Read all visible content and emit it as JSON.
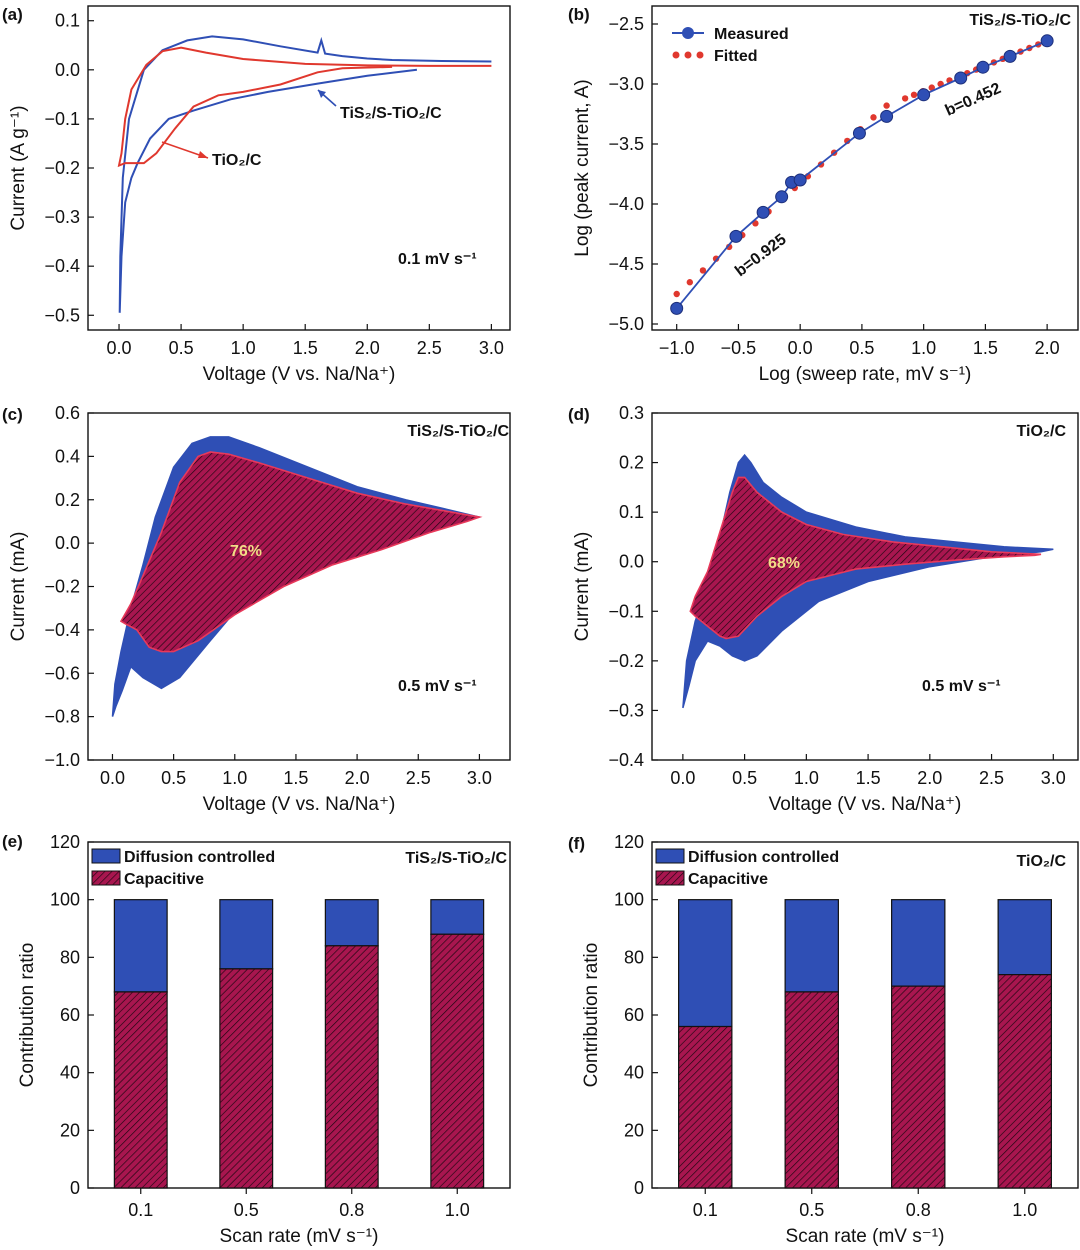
{
  "colors": {
    "blue": "#2f4fb5",
    "red": "#e0382e",
    "crimson": "#a8164f",
    "outline": "#e8395a",
    "pct": "#f2dc86"
  },
  "panels": [
    {
      "id": "a",
      "label": "(a)",
      "annotation": "0.1 mV s⁻¹",
      "curve_labels": [
        "TiS₂/S-TiO₂/C",
        "TiO₂/C"
      ],
      "chart_data": {
        "type": "line",
        "xlabel": "Voltage (V vs. Na/Na⁺)",
        "ylabel": "Current (A g⁻¹)",
        "xlim": [
          -0.25,
          3.15
        ],
        "ylim": [
          -0.53,
          0.13
        ],
        "xticks": [
          0.0,
          0.5,
          1.0,
          1.5,
          2.0,
          2.5,
          3.0
        ],
        "yticks": [
          0.1,
          0.0,
          -0.1,
          -0.2,
          -0.3,
          -0.4,
          -0.5
        ],
        "series": [
          {
            "name": "TiS₂/S-TiO₂/C",
            "color": "#2f4fb5",
            "x": [
              3.0,
              2.6,
              2.2,
              2.0,
              1.8,
              1.66,
              1.63,
              1.6,
              1.3,
              1.0,
              0.75,
              0.55,
              0.35,
              0.2,
              0.08,
              0.03,
              0.01,
              0.005,
              0.02,
              0.05,
              0.1,
              0.15,
              0.25,
              0.4,
              0.6,
              0.9,
              1.2,
              1.6,
              2.0,
              2.4
            ],
            "y": [
              0.017,
              0.018,
              0.02,
              0.023,
              0.028,
              0.033,
              0.06,
              0.035,
              0.048,
              0.062,
              0.068,
              0.06,
              0.04,
              0.0,
              -0.1,
              -0.22,
              -0.38,
              -0.495,
              -0.38,
              -0.27,
              -0.22,
              -0.19,
              -0.14,
              -0.1,
              -0.083,
              -0.06,
              -0.045,
              -0.028,
              -0.012,
              0.0
            ]
          },
          {
            "name": "TiO₂/C",
            "color": "#e0382e",
            "x": [
              3.0,
              2.5,
              2.0,
              1.5,
              1.0,
              0.7,
              0.5,
              0.35,
              0.22,
              0.1,
              0.05,
              0.02,
              0.0,
              0.05,
              0.12,
              0.2,
              0.3,
              0.45,
              0.6,
              0.8,
              1.0,
              1.3,
              1.6,
              1.8,
              2.2
            ],
            "y": [
              0.008,
              0.008,
              0.009,
              0.012,
              0.022,
              0.035,
              0.045,
              0.038,
              0.01,
              -0.04,
              -0.1,
              -0.17,
              -0.195,
              -0.19,
              -0.19,
              -0.19,
              -0.17,
              -0.12,
              -0.075,
              -0.052,
              -0.045,
              -0.03,
              -0.005,
              0.003,
              0.006
            ]
          }
        ]
      }
    },
    {
      "id": "b",
      "label": "(b)",
      "annotation": "TiS₂/S-TiO₂/C",
      "slope_labels": [
        "b=0.925",
        "b=0.452"
      ],
      "chart_data": {
        "type": "scatter",
        "xlabel": "Log (sweep rate, mV s⁻¹)",
        "ylabel": "Log (peak current, A)",
        "xlim": [
          -1.2,
          2.25
        ],
        "ylim": [
          -5.05,
          -2.35
        ],
        "xticks": [
          -1.0,
          -0.5,
          0.0,
          0.5,
          1.0,
          1.5,
          2.0
        ],
        "yticks": [
          -2.5,
          -3.0,
          -3.5,
          -4.0,
          -4.5,
          -5.0
        ],
        "series": [
          {
            "name": "Measured",
            "color": "#2f4fb5",
            "x": [
              -1.0,
              -0.52,
              -0.3,
              -0.15,
              -0.07,
              0.0,
              0.48,
              0.7,
              1.0,
              1.3,
              1.48,
              1.7,
              2.0
            ],
            "y": [
              -4.87,
              -4.27,
              -4.07,
              -3.94,
              -3.82,
              -3.8,
              -3.41,
              -3.27,
              -3.09,
              -2.95,
              -2.86,
              -2.77,
              -2.64
            ]
          },
          {
            "name": "Fitted",
            "color": "#e0382e",
            "segments": [
              {
                "x": [
                  -1.0,
                  0.7
                ],
                "y": [
                  -4.75,
                  -3.18
                ]
              },
              {
                "x": [
                  0.85,
                  2.0
                ],
                "y": [
                  -3.12,
                  -2.64
                ]
              }
            ]
          }
        ]
      }
    },
    {
      "id": "c",
      "label": "(c)",
      "annotation": "0.5 mV s⁻¹",
      "sample": "TiS₂/S-TiO₂/C",
      "percent": "76%",
      "chart_data": {
        "type": "area",
        "xlabel": "Voltage (V vs. Na/Na⁺)",
        "ylabel": "Current (mA)",
        "xlim": [
          -0.2,
          3.25
        ],
        "ylim": [
          -1.0,
          0.6
        ],
        "xticks": [
          0.0,
          0.5,
          1.0,
          1.5,
          2.0,
          2.5,
          3.0
        ],
        "yticks": [
          0.6,
          0.4,
          0.2,
          0.0,
          -0.2,
          -0.4,
          -0.6,
          -0.8,
          -1.0
        ],
        "series": [
          {
            "name": "Total",
            "color": "#2f4fb5",
            "x": [
              3.0,
              2.7,
              2.4,
              2.0,
              1.6,
              1.2,
              0.95,
              0.8,
              0.65,
              0.5,
              0.35,
              0.25,
              0.15,
              0.07,
              0.02,
              0.0,
              0.03,
              0.08,
              0.15,
              0.25,
              0.4,
              0.55,
              0.8,
              1.1,
              1.5,
              2.0,
              2.5,
              2.9
            ],
            "y": [
              0.12,
              0.16,
              0.2,
              0.26,
              0.35,
              0.44,
              0.49,
              0.49,
              0.46,
              0.35,
              0.12,
              -0.1,
              -0.3,
              -0.5,
              -0.65,
              -0.8,
              -0.75,
              -0.68,
              -0.57,
              -0.62,
              -0.67,
              -0.62,
              -0.45,
              -0.25,
              -0.12,
              -0.02,
              0.05,
              0.11
            ]
          },
          {
            "name": "Capacitive",
            "color": "#a8164f",
            "x": [
              3.0,
              2.7,
              2.4,
              2.0,
              1.6,
              1.2,
              0.95,
              0.8,
              0.7,
              0.55,
              0.4,
              0.25,
              0.15,
              0.07,
              0.1,
              0.2,
              0.3,
              0.4,
              0.5,
              0.7,
              1.0,
              1.4,
              1.8,
              2.2,
              2.6,
              2.9
            ],
            "y": [
              0.12,
              0.15,
              0.18,
              0.23,
              0.3,
              0.37,
              0.41,
              0.42,
              0.4,
              0.28,
              0.05,
              -0.15,
              -0.28,
              -0.36,
              -0.37,
              -0.4,
              -0.48,
              -0.5,
              -0.5,
              -0.45,
              -0.33,
              -0.2,
              -0.1,
              -0.03,
              0.05,
              0.1
            ]
          }
        ]
      }
    },
    {
      "id": "d",
      "label": "(d)",
      "annotation": "0.5 mV s⁻¹",
      "sample": "TiO₂/C",
      "percent": "68%",
      "chart_data": {
        "type": "area",
        "xlabel": "Voltage (V vs. Na/Na⁺)",
        "ylabel": "Current (mA)",
        "xlim": [
          -0.25,
          3.2
        ],
        "ylim": [
          -0.4,
          0.3
        ],
        "xticks": [
          0.0,
          0.5,
          1.0,
          1.5,
          2.0,
          2.5,
          3.0
        ],
        "yticks": [
          0.3,
          0.2,
          0.1,
          0.0,
          -0.1,
          -0.2,
          -0.3,
          -0.4
        ],
        "series": [
          {
            "name": "Total",
            "color": "#2f4fb5",
            "x": [
              3.0,
              2.6,
              2.2,
              1.8,
              1.4,
              1.0,
              0.8,
              0.65,
              0.55,
              0.5,
              0.45,
              0.38,
              0.3,
              0.2,
              0.1,
              0.03,
              0.0,
              0.05,
              0.1,
              0.2,
              0.3,
              0.4,
              0.5,
              0.6,
              0.8,
              1.1,
              1.5,
              2.0,
              2.5,
              2.9
            ],
            "y": [
              0.025,
              0.03,
              0.04,
              0.05,
              0.07,
              0.1,
              0.13,
              0.16,
              0.2,
              0.215,
              0.2,
              0.14,
              0.05,
              -0.05,
              -0.12,
              -0.2,
              -0.295,
              -0.25,
              -0.2,
              -0.16,
              -0.17,
              -0.19,
              -0.2,
              -0.19,
              -0.14,
              -0.08,
              -0.04,
              -0.01,
              0.01,
              0.02
            ]
          },
          {
            "name": "Capacitive",
            "color": "#a8164f",
            "x": [
              2.9,
              2.5,
              2.1,
              1.7,
              1.3,
              1.0,
              0.8,
              0.6,
              0.5,
              0.45,
              0.4,
              0.3,
              0.2,
              0.1,
              0.06,
              0.1,
              0.2,
              0.3,
              0.35,
              0.45,
              0.6,
              0.8,
              1.0,
              1.4,
              1.8,
              2.2,
              2.6,
              2.85
            ],
            "y": [
              0.015,
              0.02,
              0.03,
              0.04,
              0.055,
              0.075,
              0.1,
              0.14,
              0.17,
              0.17,
              0.14,
              0.06,
              -0.02,
              -0.07,
              -0.1,
              -0.11,
              -0.13,
              -0.15,
              -0.155,
              -0.15,
              -0.11,
              -0.07,
              -0.04,
              -0.015,
              -0.005,
              0.003,
              0.01,
              0.013
            ]
          }
        ]
      }
    },
    {
      "id": "e",
      "label": "(e)",
      "sample": "TiS₂/S-TiO₂/C",
      "legend": [
        "Diffusion controlled",
        "Capacitive"
      ],
      "chart_data": {
        "type": "bar",
        "xlabel": "Scan rate (mV s⁻¹)",
        "ylabel": "Contribution ratio",
        "categories": [
          "0.1",
          "0.5",
          "0.8",
          "1.0"
        ],
        "ylim": [
          0,
          120
        ],
        "yticks": [
          0,
          20,
          40,
          60,
          80,
          100,
          120
        ],
        "series": [
          {
            "name": "Capacitive",
            "color": "#a8164f",
            "values": [
              68,
              76,
              84,
              88
            ]
          },
          {
            "name": "Diffusion controlled",
            "color": "#2f4fb5",
            "values": [
              32,
              24,
              16,
              12
            ]
          }
        ]
      }
    },
    {
      "id": "f",
      "label": "(f)",
      "sample": "TiO₂/C",
      "legend": [
        "Diffusion controlled",
        "Capacitive"
      ],
      "chart_data": {
        "type": "bar",
        "xlabel": "Scan rate (mV s⁻¹)",
        "ylabel": "Contribution ratio",
        "categories": [
          "0.1",
          "0.5",
          "0.8",
          "1.0"
        ],
        "ylim": [
          0,
          120
        ],
        "yticks": [
          0,
          20,
          40,
          60,
          80,
          100,
          120
        ],
        "series": [
          {
            "name": "Capacitive",
            "color": "#a8164f",
            "values": [
              56,
              68,
              70,
              74
            ]
          },
          {
            "name": "Diffusion controlled",
            "color": "#2f4fb5",
            "values": [
              44,
              32,
              30,
              26
            ]
          }
        ]
      }
    }
  ]
}
